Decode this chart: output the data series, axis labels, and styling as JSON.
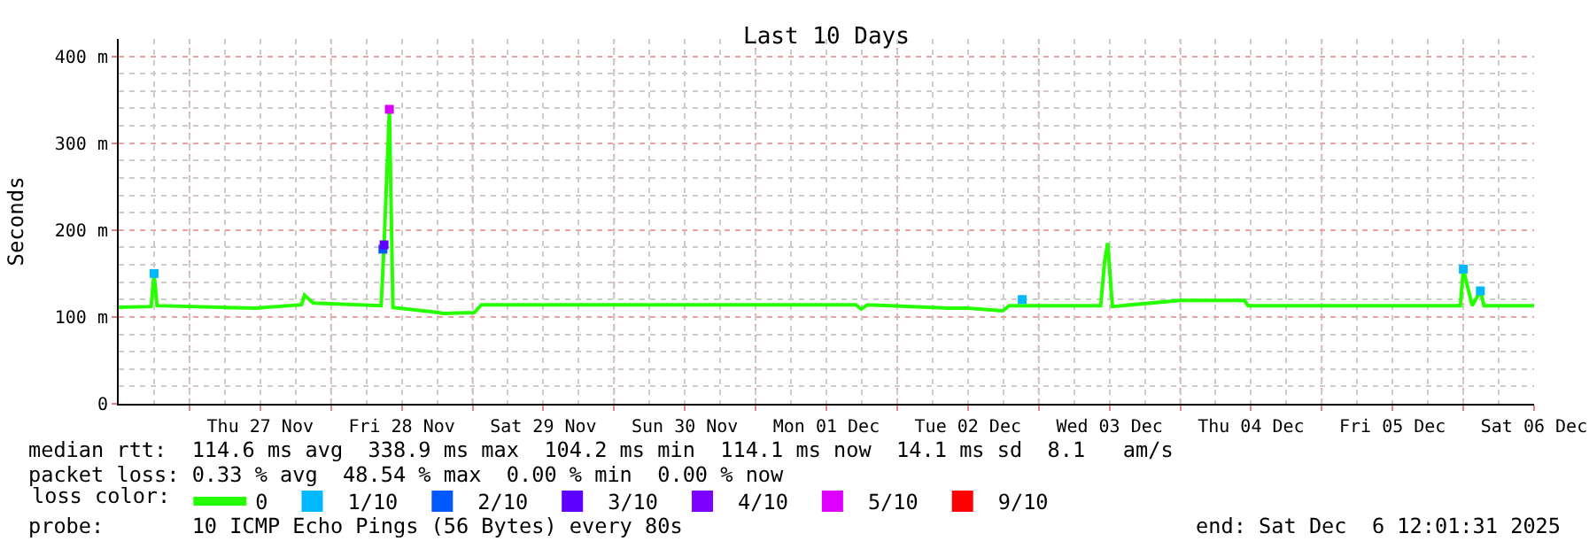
{
  "chart_data": {
    "type": "line",
    "title": "Last 10 Days",
    "ylabel": "Seconds",
    "legend_title": "loss color:",
    "legend": "bottom",
    "grid": true,
    "xlim": [
      "2025-11-26T12:00",
      "2025-12-06T12:00"
    ],
    "xticks": [
      {
        "value": "2025-11-27T00:00",
        "label": null
      },
      {
        "value": "2025-11-27T12:00",
        "label": "Thu 27 Nov"
      },
      {
        "value": "2025-11-28T00:00",
        "label": null
      },
      {
        "value": "2025-11-28T12:00",
        "label": "Fri 28 Nov"
      },
      {
        "value": "2025-11-29T00:00",
        "label": null
      },
      {
        "value": "2025-11-29T12:00",
        "label": "Sat 29 Nov"
      },
      {
        "value": "2025-11-30T00:00",
        "label": null
      },
      {
        "value": "2025-11-30T12:00",
        "label": "Sun 30 Nov"
      },
      {
        "value": "2025-12-01T00:00",
        "label": null
      },
      {
        "value": "2025-12-01T12:00",
        "label": "Mon 01 Dec"
      },
      {
        "value": "2025-12-02T00:00",
        "label": null
      },
      {
        "value": "2025-12-02T12:00",
        "label": "Tue 02 Dec"
      },
      {
        "value": "2025-12-03T00:00",
        "label": null
      },
      {
        "value": "2025-12-03T12:00",
        "label": "Wed 03 Dec"
      },
      {
        "value": "2025-12-04T00:00",
        "label": null
      },
      {
        "value": "2025-12-04T12:00",
        "label": "Thu 04 Dec"
      },
      {
        "value": "2025-12-05T00:00",
        "label": null
      },
      {
        "value": "2025-12-05T12:00",
        "label": "Fri 05 Dec"
      },
      {
        "value": "2025-12-06T00:00",
        "label": null
      },
      {
        "value": "2025-12-06T12:00",
        "label": "Sat 06 Dec"
      }
    ],
    "ylim": [
      0,
      420
    ],
    "yticks": [
      0,
      {
        "value": 100,
        "label": "100 m"
      },
      {
        "value": 200,
        "label": "200 m"
      },
      {
        "value": 300,
        "label": "300 m"
      },
      {
        "value": 400,
        "label": "400 m"
      }
    ],
    "series": [
      {
        "name": "0",
        "color": "#26ff00",
        "marker": "none",
        "x": [
          "2025-11-26T12:00",
          "2025-11-26T17:30",
          "2025-11-26T18:00",
          "2025-11-26T18:30",
          "2025-11-27T11:06",
          "2025-11-27T19:00",
          "2025-11-27T19:30",
          "2025-11-27T21:00",
          "2025-11-28T08:30",
          "2025-11-28T09:00",
          "2025-11-28T09:54",
          "2025-11-28T10:30",
          "2025-11-28T18:18",
          "2025-11-28T19:00",
          "2025-11-29T00:18",
          "2025-11-29T01:30",
          "2025-12-01T17:00",
          "2025-12-01T17:54",
          "2025-12-01T19:00",
          "2025-12-02T08:54",
          "2025-12-02T11:54",
          "2025-12-02T17:54",
          "2025-12-02T19:00",
          "2025-12-03T10:30",
          "2025-12-03T11:12",
          "2025-12-03T11:42",
          "2025-12-03T12:30",
          "2025-12-04T00:00",
          "2025-12-04T10:54",
          "2025-12-04T11:30",
          "2025-12-05T23:30",
          "2025-12-06T00:00",
          "2025-12-06T00:54",
          "2025-12-06T01:30",
          "2025-12-06T02:54",
          "2025-12-06T03:30",
          "2025-12-06T12:00"
        ],
        "values": [
          111,
          112,
          150,
          113,
          110,
          114,
          125,
          116,
          113,
          183,
          339,
          111,
          105,
          104,
          105,
          114,
          114,
          109,
          114,
          110,
          110,
          107,
          113,
          113,
          165,
          185,
          112,
          119,
          119,
          113,
          113,
          155,
          130,
          113,
          130,
          113,
          113
        ]
      },
      {
        "name": "1/10",
        "color": "#00b8ff",
        "type": "scatter",
        "marker": "square",
        "x": [
          "2025-11-26T18:00",
          "2025-12-02T21:12",
          "2025-12-06T00:00",
          "2025-12-06T02:54"
        ],
        "values": [
          150,
          120,
          155,
          130
        ]
      },
      {
        "name": "2/10",
        "color": "#0059ff",
        "type": "scatter",
        "marker": "square",
        "x": [
          "2025-11-28T08:48"
        ],
        "values": [
          178
        ]
      },
      {
        "name": "3/10",
        "color": "#5e00ff",
        "type": "scatter",
        "marker": "square",
        "x": [
          "2025-11-28T09:00"
        ],
        "values": [
          183
        ]
      },
      {
        "name": "4/10",
        "color": "#7e00ff",
        "type": "scatter",
        "marker": "square"
      },
      {
        "name": "5/10",
        "color": "#dd00ff",
        "type": "scatter",
        "marker": "square",
        "x": [
          "2025-11-28T09:54"
        ],
        "values": [
          339
        ]
      },
      {
        "name": "9/10",
        "color": "#ff0000",
        "type": "scatter",
        "marker": "square"
      }
    ],
    "annotations": [
      "median rtt:  114.6 ms avg  338.9 ms max  104.2 ms min  114.1 ms now  14.1 ms sd  8.1   am/s",
      "packet loss: 0.33 % avg  48.54 % max  0.00 % min  0.00 % now",
      "probe:       10 ICMP Echo Pings (56 Bytes) every 80s",
      "end: Sat Dec  6 12:01:31 2025"
    ]
  }
}
